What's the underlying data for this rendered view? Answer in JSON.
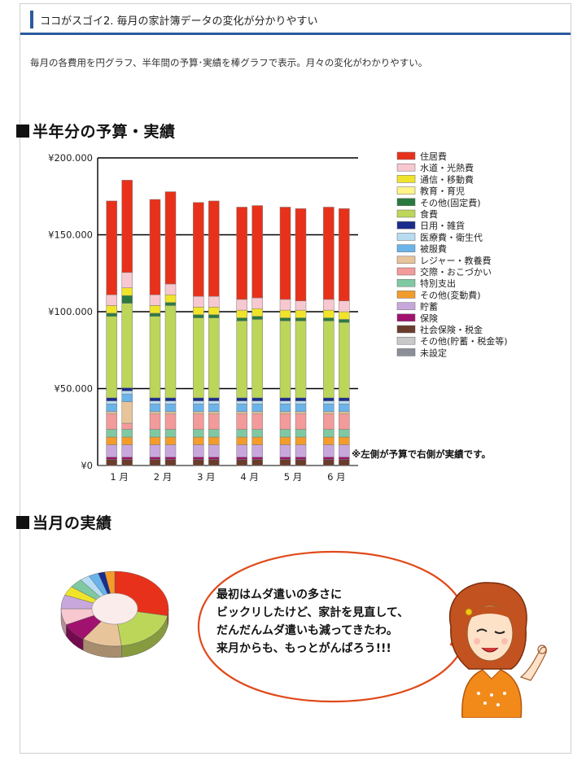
{
  "header": {
    "title": "ココがスゴイ2. 毎月の家計簿データの変化が分かりやすい"
  },
  "intro": "毎月の各費用を円グラフ、半年間の予算･実績を棒グラフで表示。月々の変化がわかりやすい。",
  "section1": {
    "title": "半年分の予算・実績"
  },
  "section2": {
    "title": "当月の実績"
  },
  "note": "※左側が予算で右側が実績です。",
  "speech": {
    "lines": [
      "最初はムダ遣いの多さに",
      "ビックリしたけど、家計を見直して、",
      "だんだんムダ遣いも減ってきたわ。",
      "来月からも、もっとがんばろう!!!"
    ]
  },
  "chart_data": {
    "type": "bar",
    "stacked": true,
    "title": "半年分の予算・実績",
    "categories": [
      "1 月",
      "2 月",
      "3 月",
      "4 月",
      "5 月",
      "6 月"
    ],
    "bars_per_category": [
      "予算",
      "実績"
    ],
    "y_tick_labels": [
      "¥0",
      "¥50.000",
      "¥100.000",
      "¥150.000",
      "¥200.000"
    ],
    "ylim": [
      0,
      200000
    ],
    "grid": true,
    "legend_position": "right",
    "series": [
      {
        "name": "未設定",
        "color": "#8a8f99",
        "values": [
          [
            0,
            0
          ],
          [
            0,
            0
          ],
          [
            0,
            0
          ],
          [
            0,
            0
          ],
          [
            0,
            0
          ],
          [
            0,
            0
          ]
        ]
      },
      {
        "name": "その他(貯蓄・税金等)",
        "color": "#c9c9c9",
        "values": [
          [
            0,
            0
          ],
          [
            0,
            0
          ],
          [
            0,
            0
          ],
          [
            0,
            0
          ],
          [
            0,
            0
          ],
          [
            0,
            0
          ]
        ]
      },
      {
        "name": "社会保険・税金",
        "color": "#6b3c2b",
        "values": [
          [
            4000,
            4000
          ],
          [
            4000,
            4000
          ],
          [
            4000,
            4000
          ],
          [
            4000,
            4000
          ],
          [
            4000,
            4000
          ],
          [
            4000,
            4000
          ]
        ]
      },
      {
        "name": "保険",
        "color": "#a0126e",
        "values": [
          [
            1500,
            1500
          ],
          [
            1500,
            1500
          ],
          [
            1500,
            1500
          ],
          [
            1500,
            1500
          ],
          [
            1500,
            1500
          ],
          [
            1500,
            1500
          ]
        ]
      },
      {
        "name": "貯蓄",
        "color": "#c8a8dc",
        "values": [
          [
            8000,
            8000
          ],
          [
            8000,
            8000
          ],
          [
            8000,
            8000
          ],
          [
            8000,
            8000
          ],
          [
            8000,
            8000
          ],
          [
            8000,
            8000
          ]
        ]
      },
      {
        "name": "その他(変動費)",
        "color": "#f39c2b",
        "values": [
          [
            5000,
            5000
          ],
          [
            5000,
            5000
          ],
          [
            5000,
            5000
          ],
          [
            5000,
            5000
          ],
          [
            5000,
            5000
          ],
          [
            5000,
            5000
          ]
        ]
      },
      {
        "name": "特別支出",
        "color": "#7fc9a2",
        "values": [
          [
            5000,
            5000
          ],
          [
            5000,
            5000
          ],
          [
            5000,
            5000
          ],
          [
            5000,
            5000
          ],
          [
            5000,
            5000
          ],
          [
            5000,
            5000
          ]
        ]
      },
      {
        "name": "交際・おこづかい",
        "color": "#f39a9a",
        "values": [
          [
            10000,
            4000
          ],
          [
            10000,
            10000
          ],
          [
            10000,
            10000
          ],
          [
            10000,
            10000
          ],
          [
            10000,
            10000
          ],
          [
            10000,
            10000
          ]
        ]
      },
      {
        "name": "レジャー・教養費",
        "color": "#e8c49a",
        "values": [
          [
            1500,
            14000
          ],
          [
            1500,
            1500
          ],
          [
            1500,
            1500
          ],
          [
            1500,
            1500
          ],
          [
            1500,
            1500
          ],
          [
            1500,
            1500
          ]
        ]
      },
      {
        "name": "被服費",
        "color": "#6ab4ea",
        "values": [
          [
            5000,
            5000
          ],
          [
            5000,
            5000
          ],
          [
            5000,
            5000
          ],
          [
            5000,
            5000
          ],
          [
            5000,
            5000
          ],
          [
            5000,
            5000
          ]
        ]
      },
      {
        "name": "医療費・衛生代",
        "color": "#b8dcf2",
        "values": [
          [
            2000,
            2000
          ],
          [
            2000,
            2000
          ],
          [
            2000,
            2000
          ],
          [
            2000,
            2000
          ],
          [
            2000,
            2000
          ],
          [
            2000,
            2000
          ]
        ]
      },
      {
        "name": "日用・雑貨",
        "color": "#1a2c8c",
        "values": [
          [
            2000,
            2000
          ],
          [
            2000,
            2000
          ],
          [
            2000,
            2000
          ],
          [
            2000,
            2000
          ],
          [
            2000,
            2000
          ],
          [
            2000,
            2000
          ]
        ]
      },
      {
        "name": "食費",
        "color": "#bcd65a",
        "values": [
          [
            53000,
            55000
          ],
          [
            53000,
            60000
          ],
          [
            52000,
            52000
          ],
          [
            50000,
            51000
          ],
          [
            50000,
            50000
          ],
          [
            50000,
            49000
          ]
        ]
      },
      {
        "name": "その他(固定費)",
        "color": "#2a7a40",
        "values": [
          [
            2000,
            5000
          ],
          [
            2000,
            2000
          ],
          [
            2000,
            2000
          ],
          [
            2000,
            2000
          ],
          [
            2000,
            2000
          ],
          [
            2000,
            2000
          ]
        ]
      },
      {
        "name": "教育・育児",
        "color": "#fff48a",
        "values": [
          [
            0,
            0
          ],
          [
            0,
            0
          ],
          [
            0,
            0
          ],
          [
            0,
            0
          ],
          [
            0,
            0
          ],
          [
            0,
            0
          ]
        ]
      },
      {
        "name": "通信・移動費",
        "color": "#f0e42a",
        "values": [
          [
            5000,
            5000
          ],
          [
            5000,
            5000
          ],
          [
            5000,
            5000
          ],
          [
            5000,
            5000
          ],
          [
            5000,
            5000
          ],
          [
            5000,
            5000
          ]
        ]
      },
      {
        "name": "水道・光熱費",
        "color": "#f8c8d0",
        "values": [
          [
            7000,
            10000
          ],
          [
            7000,
            7000
          ],
          [
            7000,
            7000
          ],
          [
            7000,
            7000
          ],
          [
            7000,
            6000
          ],
          [
            7000,
            7000
          ]
        ]
      },
      {
        "name": "住居費",
        "color": "#e8311a",
        "values": [
          [
            61000,
            60000
          ],
          [
            62000,
            60000
          ],
          [
            61000,
            62000
          ],
          [
            60000,
            60000
          ],
          [
            60000,
            60000
          ],
          [
            60000,
            60000
          ]
        ]
      }
    ],
    "legend_order": [
      "住居費",
      "水道・光熱費",
      "通信・移動費",
      "教育・育児",
      "その他(固定費)",
      "食費",
      "日用・雑貨",
      "医療費・衛生代",
      "被服費",
      "レジャー・教養費",
      "交際・おこづかい",
      "特別支出",
      "その他(変動費)",
      "貯蓄",
      "保険",
      "社会保険・税金",
      "その他(貯蓄・税金等)",
      "未設定"
    ]
  },
  "pie_data": {
    "type": "pie",
    "slices": [
      {
        "name": "住居費",
        "color": "#e8311a",
        "value": 28
      },
      {
        "name": "食費",
        "color": "#bcd65a",
        "value": 20
      },
      {
        "name": "レジャー・教養費",
        "color": "#e8c49a",
        "value": 12
      },
      {
        "name": "保険",
        "color": "#a0126e",
        "value": 8
      },
      {
        "name": "交際・おこづかい",
        "color": "#f8c8d0",
        "value": 7
      },
      {
        "name": "貯蓄",
        "color": "#c8a8dc",
        "value": 6
      },
      {
        "name": "通信・移動費",
        "color": "#f0e42a",
        "value": 4
      },
      {
        "name": "特別支出",
        "color": "#7fc9a2",
        "value": 4
      },
      {
        "name": "医療費・衛生代",
        "color": "#b8dcf2",
        "value": 3
      },
      {
        "name": "被服費",
        "color": "#6ab4ea",
        "value": 3
      },
      {
        "name": "日用・雑貨",
        "color": "#1a2c8c",
        "value": 2
      },
      {
        "name": "その他(変動費)",
        "color": "#f39c2b",
        "value": 3
      }
    ]
  }
}
